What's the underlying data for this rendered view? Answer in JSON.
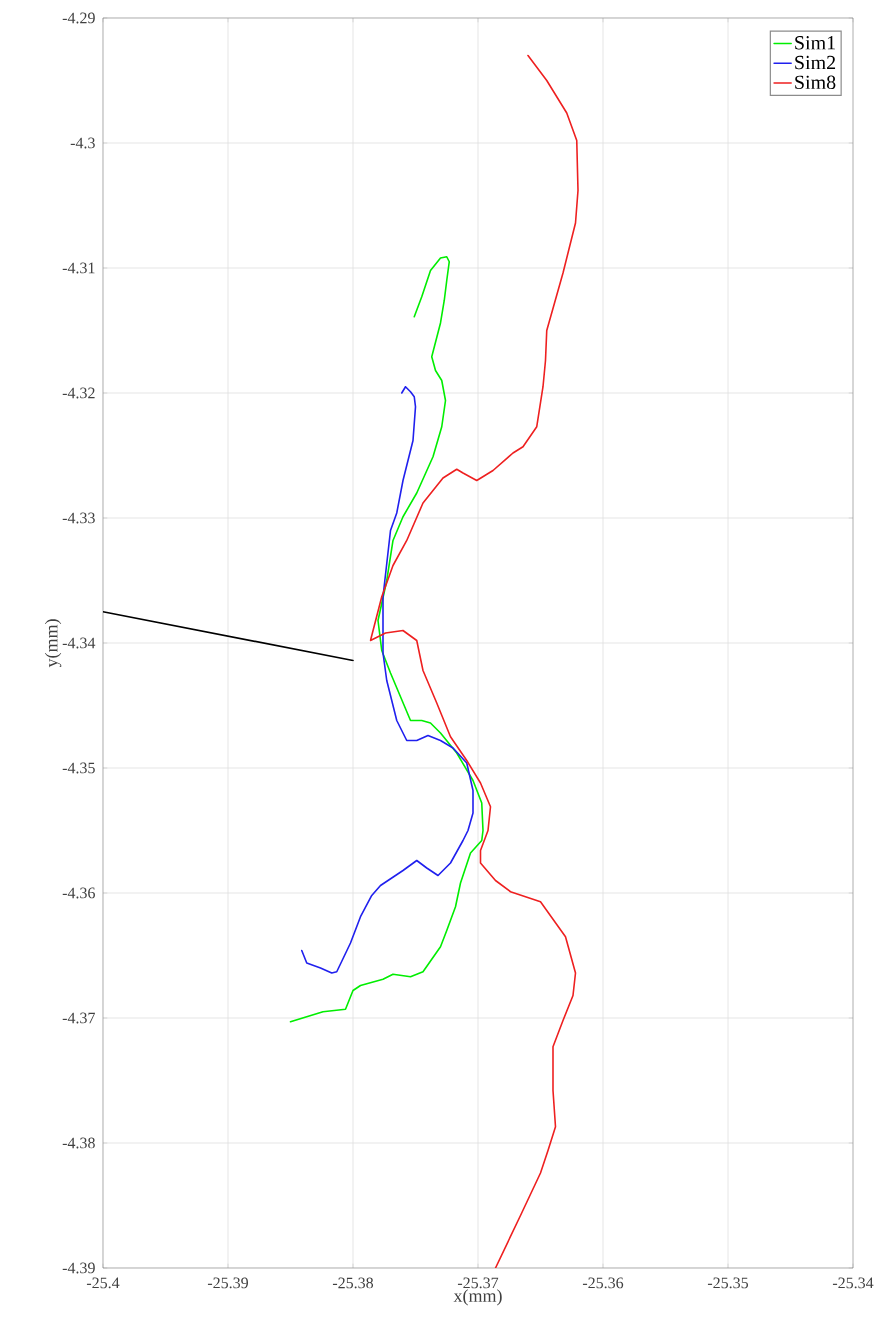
{
  "chart_data": {
    "type": "line",
    "xlabel": "x(mm)",
    "ylabel": "y(mm)",
    "xlim": [
      -25.4,
      -25.34
    ],
    "ylim": [
      -4.39,
      -4.29
    ],
    "xticks": [
      -25.4,
      -25.39,
      -25.38,
      -25.37,
      -25.36,
      -25.35,
      -25.34
    ],
    "yticks": [
      -4.39,
      -4.38,
      -4.37,
      -4.36,
      -4.35,
      -4.34,
      -4.33,
      -4.32,
      -4.31,
      -4.3,
      -4.29
    ],
    "grid": true,
    "legend": "top right",
    "marker": "none",
    "line_style": "solid",
    "series": [
      {
        "name": "Sim1",
        "color": "#00ee00",
        "x": [
          -25.3751,
          -25.3745,
          -25.3738,
          -25.373,
          -25.3725,
          -25.3723,
          -25.3725,
          -25.3727,
          -25.373,
          -25.3737,
          -25.3734,
          -25.3729,
          -25.3726,
          -25.3729,
          -25.3736,
          -25.3749,
          -25.376,
          -25.3768,
          -25.3773,
          -25.378,
          -25.3777,
          -25.377,
          -25.3754,
          -25.3745,
          -25.3738,
          -25.373,
          -25.3717,
          -25.3704,
          -25.3697,
          -25.3696,
          -25.3697,
          -25.3706,
          -25.3714,
          -25.3718,
          -25.3725,
          -25.373,
          -25.3744,
          -25.3754,
          -25.3768,
          -25.3776,
          -25.3794,
          -25.38,
          -25.3806,
          -25.3824,
          -25.385
        ],
        "values": [
          -4.3139,
          -4.3123,
          -4.3102,
          -4.3092,
          -4.3091,
          -4.3095,
          -4.311,
          -4.3126,
          -4.3144,
          -4.3171,
          -4.3182,
          -4.319,
          -4.3206,
          -4.3227,
          -4.3251,
          -4.328,
          -4.3299,
          -4.3318,
          -4.335,
          -4.3382,
          -4.3406,
          -4.3424,
          -4.3462,
          -4.3462,
          -4.3464,
          -4.3472,
          -4.3488,
          -4.351,
          -4.3528,
          -4.355,
          -4.3558,
          -4.3568,
          -4.3592,
          -4.3611,
          -4.363,
          -4.3643,
          -4.3663,
          -4.3667,
          -4.3665,
          -4.3669,
          -4.3674,
          -4.3678,
          -4.3693,
          -4.3695,
          -4.3703
        ]
      },
      {
        "name": "Sim2",
        "color": "#2020ee",
        "x": [
          -25.3761,
          -25.3758,
          -25.3754,
          -25.3751,
          -25.375,
          -25.3752,
          -25.376,
          -25.3765,
          -25.377,
          -25.3776,
          -25.3776,
          -25.3773,
          -25.3765,
          -25.3757,
          -25.3749,
          -25.374,
          -25.373,
          -25.372,
          -25.3709,
          -25.3704,
          -25.3704,
          -25.3708,
          -25.3712,
          -25.3722,
          -25.3732,
          -25.3741,
          -25.3749,
          -25.376,
          -25.3778,
          -25.3785,
          -25.3794,
          -25.3802,
          -25.3813,
          -25.3817,
          -25.3826,
          -25.3837,
          -25.3841
        ],
        "values": [
          -4.32,
          -4.3195,
          -4.3199,
          -4.3203,
          -4.3211,
          -4.3238,
          -4.327,
          -4.3296,
          -4.331,
          -4.3363,
          -4.3408,
          -4.343,
          -4.3462,
          -4.3478,
          -4.3478,
          -4.3474,
          -4.3478,
          -4.3484,
          -4.3496,
          -4.3518,
          -4.3536,
          -4.355,
          -4.3558,
          -4.3576,
          -4.3586,
          -4.358,
          -4.3574,
          -4.3582,
          -4.3594,
          -4.3602,
          -4.3619,
          -4.364,
          -4.3663,
          -4.3664,
          -4.366,
          -4.3656,
          -4.3646
        ]
      },
      {
        "name": "Sim8",
        "color": "#ee2020",
        "x": [
          -25.366,
          -25.3645,
          -25.3629,
          -25.3621,
          -25.362,
          -25.3622,
          -25.3632,
          -25.3645,
          -25.3646,
          -25.3648,
          -25.3653,
          -25.3664,
          -25.3672,
          -25.3688,
          -25.3701,
          -25.3712,
          -25.3717,
          -25.3728,
          -25.3744,
          -25.3757,
          -25.3768,
          -25.3777,
          -25.3786,
          -25.3774,
          -25.376,
          -25.3749,
          -25.3744,
          -25.3733,
          -25.3722,
          -25.3709,
          -25.3698,
          -25.369,
          -25.3692,
          -25.3698,
          -25.3698,
          -25.3686,
          -25.3674,
          -25.365,
          -25.363,
          -25.3622,
          -25.3624,
          -25.3632,
          -25.364,
          -25.364,
          -25.3638,
          -25.3644,
          -25.365,
          -25.3666,
          -25.3686
        ],
        "values": [
          -4.293,
          -4.295,
          -4.2976,
          -4.2998,
          -4.3038,
          -4.3064,
          -4.3104,
          -4.315,
          -4.3174,
          -4.3195,
          -4.3227,
          -4.3243,
          -4.3248,
          -4.3262,
          -4.327,
          -4.3264,
          -4.3261,
          -4.3268,
          -4.3288,
          -4.3318,
          -4.3338,
          -4.3363,
          -4.3398,
          -4.3392,
          -4.339,
          -4.3398,
          -4.3422,
          -4.3448,
          -4.3475,
          -4.3494,
          -4.3512,
          -4.3531,
          -4.355,
          -4.3566,
          -4.3576,
          -4.359,
          -4.3599,
          -4.3607,
          -4.3635,
          -4.3664,
          -4.3682,
          -4.3702,
          -4.3723,
          -4.3758,
          -4.3787,
          -4.3806,
          -4.3824,
          -4.3858,
          -4.39
        ]
      },
      {
        "color": "#000000",
        "x": [
          -25.4,
          -25.38
        ],
        "values": [
          -4.3375,
          -4.3414
        ]
      }
    ]
  }
}
